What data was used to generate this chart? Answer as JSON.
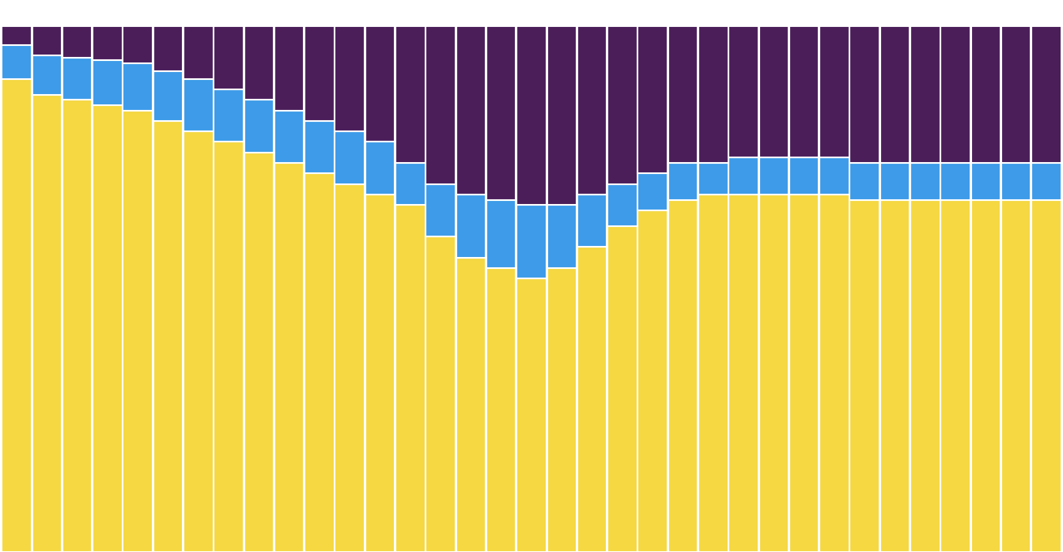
{
  "yellow": [
    0.9,
    0.87,
    0.86,
    0.85,
    0.84,
    0.82,
    0.8,
    0.78,
    0.76,
    0.74,
    0.72,
    0.7,
    0.68,
    0.66,
    0.6,
    0.56,
    0.54,
    0.52,
    0.54,
    0.58,
    0.62,
    0.65,
    0.67,
    0.68,
    0.68,
    0.68,
    0.68,
    0.68,
    0.67,
    0.67,
    0.67,
    0.67,
    0.67,
    0.67,
    0.67
  ],
  "blue": [
    0.065,
    0.075,
    0.08,
    0.085,
    0.09,
    0.095,
    0.1,
    0.1,
    0.1,
    0.1,
    0.1,
    0.1,
    0.1,
    0.08,
    0.1,
    0.12,
    0.13,
    0.14,
    0.12,
    0.1,
    0.08,
    0.07,
    0.07,
    0.06,
    0.07,
    0.07,
    0.07,
    0.07,
    0.07,
    0.07,
    0.07,
    0.07,
    0.07,
    0.07,
    0.07
  ],
  "purple": [
    0.035,
    0.055,
    0.06,
    0.065,
    0.07,
    0.085,
    0.1,
    0.12,
    0.14,
    0.16,
    0.18,
    0.2,
    0.22,
    0.26,
    0.3,
    0.32,
    0.33,
    0.34,
    0.34,
    0.32,
    0.3,
    0.28,
    0.26,
    0.26,
    0.25,
    0.25,
    0.25,
    0.25,
    0.26,
    0.26,
    0.26,
    0.26,
    0.26,
    0.26,
    0.26
  ],
  "yellow_color": "#F5D842",
  "blue_color": "#3D9BE9",
  "purple_color": "#4B1E5A",
  "background_color": "#ffffff",
  "bar_edge_color": "#ffffff",
  "n_bars": 35,
  "ylim_max": 1.05
}
